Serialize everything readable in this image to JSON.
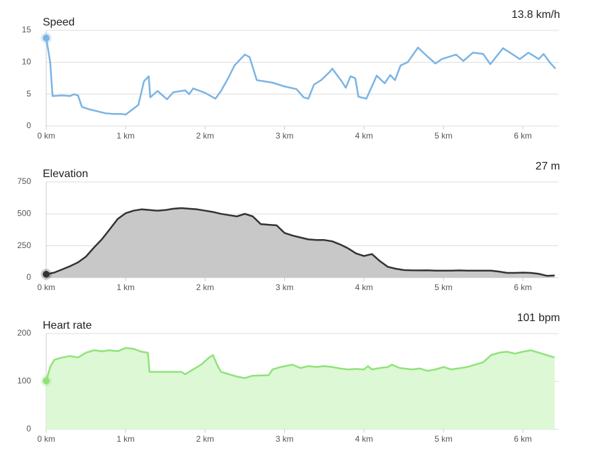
{
  "chart_data": [
    {
      "type": "line",
      "title": "Speed",
      "color": "#7ab4e4",
      "marker": {
        "x": 0,
        "value": 13.8,
        "label": "13.8 km/h"
      },
      "x": [
        0,
        0.05,
        0.08,
        0.2,
        0.3,
        0.35,
        0.4,
        0.45,
        0.55,
        0.65,
        0.75,
        0.85,
        0.95,
        1.0,
        1.16,
        1.23,
        1.29,
        1.31,
        1.4,
        1.52,
        1.6,
        1.75,
        1.8,
        1.85,
        2.0,
        2.13,
        2.2,
        2.29,
        2.37,
        2.5,
        2.56,
        2.65,
        2.85,
        3.0,
        3.15,
        3.24,
        3.3,
        3.37,
        3.46,
        3.57,
        3.6,
        3.72,
        3.77,
        3.83,
        3.89,
        3.93,
        4.03,
        4.16,
        4.26,
        4.33,
        4.39,
        4.46,
        4.55,
        4.68,
        4.79,
        4.9,
        4.98,
        5.16,
        5.25,
        5.37,
        5.5,
        5.59,
        5.75,
        5.9,
        5.96,
        6.07,
        6.2,
        6.26,
        6.35,
        6.41
      ],
      "values": [
        13.8,
        10,
        4.7,
        4.8,
        4.7,
        5,
        4.8,
        3,
        2.6,
        2.3,
        2.0,
        1.9,
        1.9,
        1.8,
        3.3,
        7.0,
        7.8,
        4.5,
        5.5,
        4.2,
        5.3,
        5.6,
        5.0,
        5.9,
        5.2,
        4.3,
        5.5,
        7.5,
        9.5,
        11.2,
        10.8,
        7.2,
        6.8,
        6.2,
        5.8,
        4.5,
        4.3,
        6.5,
        7.2,
        8.5,
        9,
        7,
        6,
        7.8,
        7.5,
        4.6,
        4.3,
        7.9,
        6.7,
        8,
        7.2,
        9.5,
        10,
        12.3,
        11,
        9.8,
        10.5,
        11.2,
        10.2,
        11.5,
        11.3,
        9.7,
        12.2,
        11.0,
        10.5,
        11.5,
        10.5,
        11.3,
        9.8,
        9.0
      ],
      "xlim": [
        0,
        6.45
      ],
      "ylim": [
        0,
        15
      ],
      "yticks": [
        0,
        5,
        10,
        15
      ],
      "xticks": [
        {
          "value": 0,
          "label": "0 km"
        },
        {
          "value": 1,
          "label": "1 km"
        },
        {
          "value": 2,
          "label": "2 km"
        },
        {
          "value": 3,
          "label": "3 km"
        },
        {
          "value": 4,
          "label": "4 km"
        },
        {
          "value": 5,
          "label": "5 km"
        },
        {
          "value": 6,
          "label": "6 km"
        }
      ]
    },
    {
      "type": "area",
      "title": "Elevation",
      "color": "#333333",
      "fill": "#c8c8c8",
      "marker": {
        "x": 0,
        "value": 27,
        "label": "27 m"
      },
      "x": [
        0,
        0.1,
        0.2,
        0.3,
        0.4,
        0.5,
        0.6,
        0.7,
        0.8,
        0.9,
        1.0,
        1.1,
        1.2,
        1.3,
        1.4,
        1.5,
        1.6,
        1.7,
        1.8,
        1.9,
        2.0,
        2.1,
        2.2,
        2.3,
        2.4,
        2.5,
        2.6,
        2.7,
        2.8,
        2.9,
        3.0,
        3.1,
        3.2,
        3.3,
        3.4,
        3.5,
        3.6,
        3.7,
        3.8,
        3.9,
        4.0,
        4.1,
        4.2,
        4.3,
        4.4,
        4.5,
        4.6,
        4.7,
        4.8,
        4.9,
        5.0,
        5.1,
        5.2,
        5.3,
        5.4,
        5.5,
        5.6,
        5.7,
        5.8,
        5.9,
        6.0,
        6.1,
        6.2,
        6.3,
        6.4
      ],
      "values": [
        27,
        40,
        65,
        90,
        120,
        165,
        235,
        300,
        380,
        460,
        505,
        525,
        535,
        530,
        525,
        530,
        540,
        545,
        540,
        535,
        525,
        515,
        500,
        490,
        480,
        500,
        480,
        420,
        415,
        410,
        350,
        330,
        315,
        300,
        295,
        295,
        285,
        260,
        230,
        190,
        170,
        185,
        130,
        85,
        70,
        60,
        58,
        57,
        58,
        55,
        55,
        55,
        57,
        55,
        55,
        55,
        55,
        48,
        38,
        38,
        40,
        38,
        30,
        15,
        17
      ],
      "xlim": [
        0,
        6.45
      ],
      "ylim": [
        0,
        750
      ],
      "yticks": [
        0,
        250,
        500,
        750
      ],
      "xticks": [
        {
          "value": 0,
          "label": "0 km"
        },
        {
          "value": 1,
          "label": "1 km"
        },
        {
          "value": 2,
          "label": "2 km"
        },
        {
          "value": 3,
          "label": "3 km"
        },
        {
          "value": 4,
          "label": "4 km"
        },
        {
          "value": 5,
          "label": "5 km"
        },
        {
          "value": 6,
          "label": "6 km"
        }
      ]
    },
    {
      "type": "area",
      "title": "Heart rate",
      "color": "#90e27a",
      "fill": "#dcf8d4",
      "marker": {
        "x": 0,
        "value": 101,
        "label": "101 bpm"
      },
      "x": [
        0,
        0.05,
        0.1,
        0.2,
        0.3,
        0.4,
        0.5,
        0.6,
        0.7,
        0.8,
        0.9,
        1.0,
        1.1,
        1.2,
        1.28,
        1.3,
        1.7,
        1.75,
        1.85,
        1.95,
        2.05,
        2.1,
        2.15,
        2.2,
        2.3,
        2.4,
        2.5,
        2.6,
        2.8,
        2.85,
        2.95,
        3.1,
        3.2,
        3.3,
        3.4,
        3.5,
        3.6,
        3.7,
        3.8,
        3.9,
        4.0,
        4.05,
        4.1,
        4.2,
        4.3,
        4.35,
        4.45,
        4.6,
        4.7,
        4.8,
        4.9,
        5.0,
        5.1,
        5.3,
        5.5,
        5.6,
        5.7,
        5.8,
        5.9,
        6.0,
        6.1,
        6.2,
        6.3,
        6.4
      ],
      "values": [
        101,
        130,
        145,
        150,
        153,
        150,
        160,
        165,
        163,
        165,
        163,
        170,
        168,
        162,
        160,
        120,
        120,
        115,
        125,
        135,
        150,
        155,
        135,
        120,
        115,
        110,
        107,
        112,
        113,
        125,
        130,
        135,
        128,
        132,
        130,
        132,
        130,
        127,
        125,
        126,
        125,
        132,
        125,
        128,
        130,
        135,
        128,
        125,
        127,
        122,
        125,
        130,
        125,
        130,
        140,
        155,
        160,
        162,
        158,
        162,
        165,
        160,
        155,
        150
      ],
      "xlim": [
        0,
        6.45
      ],
      "ylim": [
        0,
        200
      ],
      "yticks": [
        0,
        100,
        200
      ],
      "xticks": [
        {
          "value": 0,
          "label": "0 km"
        },
        {
          "value": 1,
          "label": "1 km"
        },
        {
          "value": 2,
          "label": "2 km"
        },
        {
          "value": 3,
          "label": "3 km"
        },
        {
          "value": 4,
          "label": "4 km"
        },
        {
          "value": 5,
          "label": "5 km"
        },
        {
          "value": 6,
          "label": "6 km"
        }
      ]
    }
  ]
}
